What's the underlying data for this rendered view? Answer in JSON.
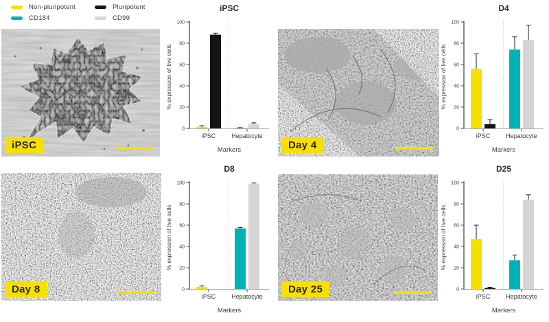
{
  "colors": {
    "accent_yellow": "#F6E000",
    "axis": "#4a4a4a",
    "text": "#3a3a3a",
    "baseline": "#b3b3b3",
    "divider": "#c9c9c9"
  },
  "legend": {
    "items": [
      {
        "name": "Non-pluripotent",
        "color": "#F6E000"
      },
      {
        "name": "Pluripotent",
        "color": "#141414"
      },
      {
        "name": "CD184",
        "color": "#00B2B4"
      },
      {
        "name": "CD99",
        "color": "#D5D5D5"
      }
    ]
  },
  "micrographs": [
    {
      "label": "iPSC"
    },
    {
      "label": "Day 4"
    },
    {
      "label": "Day 8"
    },
    {
      "label": "Day 25"
    }
  ],
  "chart_data": [
    {
      "type": "bar",
      "title": "iPSC",
      "xlabel": "Markers",
      "ylabel": "% expression of live cells",
      "ylim": [
        0,
        100
      ],
      "yticks": [
        0,
        20,
        40,
        60,
        80,
        100
      ],
      "grid": false,
      "groups": [
        "iPSC",
        "Hepatocyte"
      ],
      "series": [
        {
          "name": "Non-pluripotent",
          "group": "iPSC",
          "value": 1.5,
          "error": 1.0
        },
        {
          "name": "Pluripotent",
          "group": "iPSC",
          "value": 88,
          "error": 1.5
        },
        {
          "name": "CD184",
          "group": "Hepatocyte",
          "value": 0.4,
          "error": 0.3
        },
        {
          "name": "CD99",
          "group": "Hepatocyte",
          "value": 4,
          "error": 1.2
        }
      ]
    },
    {
      "type": "bar",
      "title": "D4",
      "xlabel": "Markers",
      "ylabel": "% expression of live cells",
      "ylim": [
        0,
        100
      ],
      "yticks": [
        0,
        20,
        40,
        60,
        80,
        100
      ],
      "grid": false,
      "groups": [
        "iPSC",
        "Hepatocyte"
      ],
      "series": [
        {
          "name": "Non-pluripotent",
          "group": "iPSC",
          "value": 56,
          "error": 14
        },
        {
          "name": "Pluripotent",
          "group": "iPSC",
          "value": 4,
          "error": 4
        },
        {
          "name": "CD184",
          "group": "Hepatocyte",
          "value": 74,
          "error": 12
        },
        {
          "name": "CD99",
          "group": "Hepatocyte",
          "value": 83,
          "error": 14
        }
      ]
    },
    {
      "type": "bar",
      "title": "D8",
      "xlabel": "Markers",
      "ylabel": "% expression of live cells",
      "ylim": [
        0,
        100
      ],
      "yticks": [
        0,
        20,
        40,
        60,
        80,
        100
      ],
      "grid": false,
      "groups": [
        "iPSC",
        "Hepatocyte"
      ],
      "series": [
        {
          "name": "Non-pluripotent",
          "group": "iPSC",
          "value": 2,
          "error": 1
        },
        {
          "name": "Pluripotent",
          "group": "iPSC",
          "value": 0,
          "error": 0
        },
        {
          "name": "CD184",
          "group": "Hepatocyte",
          "value": 57,
          "error": 0.8
        },
        {
          "name": "CD99",
          "group": "Hepatocyte",
          "value": 99,
          "error": 0.8
        }
      ]
    },
    {
      "type": "bar",
      "title": "D25",
      "xlabel": "Markers",
      "ylabel": "% expression of live cells",
      "ylim": [
        0,
        100
      ],
      "yticks": [
        0,
        20,
        40,
        60,
        80,
        100
      ],
      "grid": false,
      "groups": [
        "iPSC",
        "Hepatocyte"
      ],
      "series": [
        {
          "name": "Non-pluripotent",
          "group": "iPSC",
          "value": 47,
          "error": 13
        },
        {
          "name": "Pluripotent",
          "group": "iPSC",
          "value": 1,
          "error": 0.6
        },
        {
          "name": "CD184",
          "group": "Hepatocyte",
          "value": 27,
          "error": 5
        },
        {
          "name": "CD99",
          "group": "Hepatocyte",
          "value": 84,
          "error": 4.5
        }
      ]
    }
  ]
}
